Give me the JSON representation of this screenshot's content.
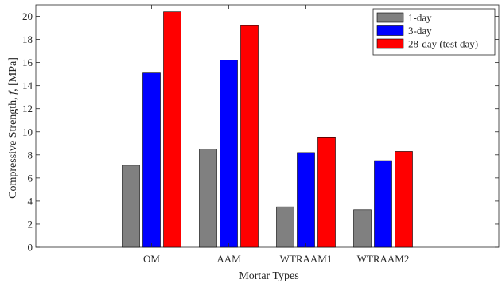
{
  "chart_data": {
    "type": "bar",
    "title": "",
    "xlabel": "Mortar Types",
    "ylabel_prefix": "Compressive Strength, ",
    "ylabel_var": "f",
    "ylabel_suffix": ", [MPa]",
    "categories": [
      "OM",
      "AAM",
      "WTRAAM1",
      "WTRAAM2"
    ],
    "ylim": [
      0,
      21
    ],
    "yticks": [
      0,
      2,
      4,
      6,
      8,
      10,
      12,
      14,
      16,
      18,
      20
    ],
    "grid": false,
    "legend_position": "top-right",
    "series": [
      {
        "name": "1-day",
        "color": "#808080",
        "values": [
          7.1,
          8.5,
          3.5,
          3.25
        ]
      },
      {
        "name": "3-day",
        "color": "#0000ff",
        "values": [
          15.1,
          16.2,
          8.2,
          7.5
        ]
      },
      {
        "name": "28-day (test day)",
        "color": "#ff0000",
        "values": [
          20.4,
          19.2,
          9.55,
          8.3
        ]
      }
    ]
  }
}
